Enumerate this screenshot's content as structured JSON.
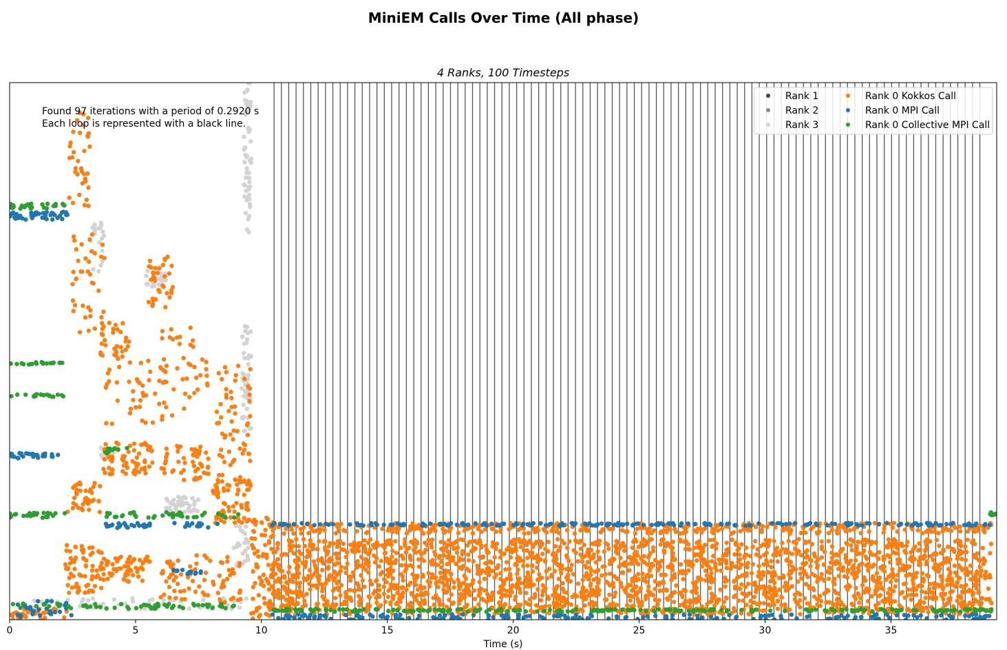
{
  "figure": {
    "title": "MiniEM Calls Over Time (All phase)"
  },
  "chart_data": {
    "type": "scatter",
    "subtitle": "4 Ranks, 100 Timesteps",
    "xlabel": "Time (s)",
    "ylabel": "",
    "xlim": [
      0,
      39.2
    ],
    "x_ticks": [
      0,
      5,
      10,
      15,
      20,
      25,
      30,
      35
    ],
    "x_tick_labels": [
      "0",
      "5",
      "10",
      "15",
      "20",
      "25",
      "30",
      "35"
    ],
    "y_ticks_shown": false,
    "grid": false,
    "annotation": [
      "Found 97 iterations with a period of 0.2920 s",
      "Each loop is represented with a black line."
    ],
    "loop_lines": {
      "start": 10.5,
      "period": 0.292,
      "count": 97,
      "color": "#555555"
    },
    "legend": {
      "placement": "top-right",
      "columns": 2,
      "entries": [
        {
          "label": "Rank 1",
          "color": "#444444"
        },
        {
          "label": "Rank 2",
          "color": "#888888"
        },
        {
          "label": "Rank 3",
          "color": "#d3d3d3"
        },
        {
          "label": "Rank 0 Kokkos Call",
          "color": "#ff7f0e"
        },
        {
          "label": "Rank 0 MPI Call",
          "color": "#1f77b4"
        },
        {
          "label": "Rank 0 Collective MPI Call",
          "color": "#2ca02c"
        }
      ]
    },
    "series": [
      {
        "name": "Rank 3",
        "color": "#d3d3d3",
        "clusters": [
          {
            "x": [
              9.3,
              9.6
            ],
            "y": [
              0.72,
              1.0
            ],
            "n": 60
          },
          {
            "x": [
              9.2,
              9.6
            ],
            "y": [
              0.35,
              0.55
            ],
            "n": 50
          },
          {
            "x": [
              3.2,
              3.8
            ],
            "y": [
              0.64,
              0.74
            ],
            "n": 20
          },
          {
            "x": [
              3.6,
              4.2
            ],
            "y": [
              0.3,
              0.32
            ],
            "n": 25
          },
          {
            "x": [
              5.4,
              6.2
            ],
            "y": [
              0.62,
              0.65
            ],
            "n": 20
          },
          {
            "x": [
              6.2,
              7.6
            ],
            "y": [
              0.2,
              0.23
            ],
            "n": 40
          },
          {
            "x": [
              8.9,
              9.5
            ],
            "y": [
              0.1,
              0.19
            ],
            "n": 30
          },
          {
            "x": [
              0.3,
              9.5
            ],
            "y": [
              0.02,
              0.04
            ],
            "n": 60
          }
        ]
      },
      {
        "name": "Rank 0 Kokkos Call",
        "color": "#ff7f0e",
        "clusters": [
          {
            "x": [
              2.3,
              3.2
            ],
            "y": [
              0.76,
              0.95
            ],
            "n": 35
          },
          {
            "x": [
              2.5,
              3.8
            ],
            "y": [
              0.53,
              0.73
            ],
            "n": 40
          },
          {
            "x": [
              3.6,
              4.8
            ],
            "y": [
              0.49,
              0.56
            ],
            "n": 30
          },
          {
            "x": [
              5.5,
              6.5
            ],
            "y": [
              0.58,
              0.68
            ],
            "n": 35
          },
          {
            "x": [
              3.8,
              6.2
            ],
            "y": [
              0.36,
              0.49
            ],
            "n": 45
          },
          {
            "x": [
              6.0,
              8.0
            ],
            "y": [
              0.38,
              0.55
            ],
            "n": 40
          },
          {
            "x": [
              8.2,
              9.6
            ],
            "y": [
              0.24,
              0.48
            ],
            "n": 70
          },
          {
            "x": [
              3.7,
              5.7
            ],
            "y": [
              0.27,
              0.33
            ],
            "n": 70
          },
          {
            "x": [
              6.0,
              7.9
            ],
            "y": [
              0.26,
              0.33
            ],
            "n": 50
          },
          {
            "x": [
              2.3,
              3.6
            ],
            "y": [
              0.2,
              0.26
            ],
            "n": 40
          },
          {
            "x": [
              8.0,
              9.6
            ],
            "y": [
              0.18,
              0.26
            ],
            "n": 60
          },
          {
            "x": [
              2.2,
              3.7
            ],
            "y": [
              0.05,
              0.14
            ],
            "n": 70
          },
          {
            "x": [
              3.7,
              5.6
            ],
            "y": [
              0.07,
              0.12
            ],
            "n": 60
          },
          {
            "x": [
              6.0,
              9.2
            ],
            "y": [
              0.03,
              0.12
            ],
            "n": 80
          },
          {
            "x": [
              0.0,
              2.3
            ],
            "y": [
              0.0,
              0.02
            ],
            "n": 40
          },
          {
            "x": [
              9.6,
              10.5
            ],
            "y": [
              0.0,
              0.19
            ],
            "n": 80
          },
          {
            "x": [
              10.4,
              39.0
            ],
            "y": [
              0.01,
              0.15
            ],
            "n": 2400
          },
          {
            "x": [
              10.4,
              39.0
            ],
            "y": [
              0.16,
              0.18
            ],
            "n": 380
          }
        ]
      },
      {
        "name": "Rank 0 MPI Call",
        "color": "#1f77b4",
        "clusters": [
          {
            "x": [
              0.0,
              2.3
            ],
            "y": [
              0.745,
              0.76
            ],
            "n": 40
          },
          {
            "x": [
              0.0,
              2.2
            ],
            "y": [
              0.3,
              0.31
            ],
            "n": 28
          },
          {
            "x": [
              3.7,
              5.6
            ],
            "y": [
              0.17,
              0.18
            ],
            "n": 24
          },
          {
            "x": [
              6.5,
              8.5
            ],
            "y": [
              0.17,
              0.18
            ],
            "n": 16
          },
          {
            "x": [
              6.5,
              7.7
            ],
            "y": [
              0.085,
              0.095
            ],
            "n": 12
          },
          {
            "x": [
              0.0,
              2.5
            ],
            "y": [
              0.005,
              0.035
            ],
            "n": 30
          },
          {
            "x": [
              10.4,
              39.0
            ],
            "y": [
              0.0,
              0.01
            ],
            "n": 200
          },
          {
            "x": [
              10.4,
              39.0
            ],
            "y": [
              0.175,
              0.18
            ],
            "n": 200
          }
        ]
      },
      {
        "name": "Rank 0 Collective MPI Call",
        "color": "#2ca02c",
        "clusters": [
          {
            "x": [
              0.0,
              2.2
            ],
            "y": [
              0.765,
              0.775
            ],
            "n": 25
          },
          {
            "x": [
              0.0,
              2.2
            ],
            "y": [
              0.475,
              0.48
            ],
            "n": 20
          },
          {
            "x": [
              0.0,
              2.2
            ],
            "y": [
              0.415,
              0.42
            ],
            "n": 18
          },
          {
            "x": [
              3.8,
              4.8
            ],
            "y": [
              0.31,
              0.32
            ],
            "n": 10
          },
          {
            "x": [
              0.0,
              2.2
            ],
            "y": [
              0.19,
              0.2
            ],
            "n": 25
          },
          {
            "x": [
              3.8,
              9.2
            ],
            "y": [
              0.19,
              0.2
            ],
            "n": 40
          },
          {
            "x": [
              0.0,
              9.2
            ],
            "y": [
              0.02,
              0.03
            ],
            "n": 60
          },
          {
            "x": [
              10.4,
              39.0
            ],
            "y": [
              0.015,
              0.02
            ],
            "n": 220
          },
          {
            "x": [
              38.9,
              39.2
            ],
            "y": [
              0.19,
              0.2
            ],
            "n": 8
          }
        ]
      }
    ]
  }
}
